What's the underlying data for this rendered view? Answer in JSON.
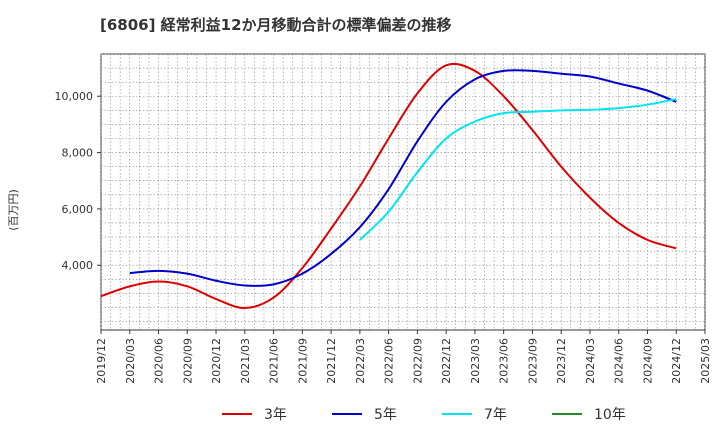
{
  "chart_data": {
    "type": "line",
    "title": "[6806]  経常利益12か月移動合計の標準偏差の推移",
    "ylabel": "(百万円)",
    "xlabel": "",
    "x_ticks": [
      "2019/12",
      "2020/03",
      "2020/06",
      "2020/09",
      "2020/12",
      "2021/03",
      "2021/06",
      "2021/09",
      "2021/12",
      "2022/03",
      "2022/06",
      "2022/09",
      "2022/12",
      "2023/03",
      "2023/06",
      "2023/09",
      "2023/12",
      "2024/03",
      "2024/06",
      "2024/09",
      "2024/12",
      "2025/03"
    ],
    "y_ticks": [
      "4,000",
      "6,000",
      "8,000",
      "10,000"
    ],
    "y_tick_values": [
      4000,
      6000,
      8000,
      10000
    ],
    "ylim": [
      1700,
      11500
    ],
    "grid": true,
    "legend_position": "bottom",
    "series": [
      {
        "name": "3年",
        "color": "#dd0000",
        "points": [
          [
            "2019/12",
            2900
          ],
          [
            "2020/03",
            3250
          ],
          [
            "2020/06",
            3420
          ],
          [
            "2020/09",
            3250
          ],
          [
            "2020/12",
            2800
          ],
          [
            "2021/03",
            2480
          ],
          [
            "2021/06",
            2850
          ],
          [
            "2021/09",
            3900
          ],
          [
            "2021/12",
            5300
          ],
          [
            "2022/03",
            6800
          ],
          [
            "2022/06",
            8500
          ],
          [
            "2022/09",
            10100
          ],
          [
            "2022/12",
            11100
          ],
          [
            "2023/03",
            10900
          ],
          [
            "2023/06",
            10000
          ],
          [
            "2023/09",
            8800
          ],
          [
            "2023/12",
            7500
          ],
          [
            "2024/03",
            6400
          ],
          [
            "2024/06",
            5500
          ],
          [
            "2024/09",
            4900
          ],
          [
            "2024/12",
            4600
          ]
        ]
      },
      {
        "name": "5年",
        "color": "#0000cc",
        "points": [
          [
            "2020/03",
            3720
          ],
          [
            "2020/06",
            3800
          ],
          [
            "2020/09",
            3700
          ],
          [
            "2020/12",
            3450
          ],
          [
            "2021/03",
            3280
          ],
          [
            "2021/06",
            3320
          ],
          [
            "2021/09",
            3700
          ],
          [
            "2021/12",
            4400
          ],
          [
            "2022/03",
            5350
          ],
          [
            "2022/06",
            6700
          ],
          [
            "2022/09",
            8400
          ],
          [
            "2022/12",
            9800
          ],
          [
            "2023/03",
            10600
          ],
          [
            "2023/06",
            10900
          ],
          [
            "2023/09",
            10900
          ],
          [
            "2023/12",
            10800
          ],
          [
            "2024/03",
            10700
          ],
          [
            "2024/06",
            10450
          ],
          [
            "2024/09",
            10200
          ],
          [
            "2024/12",
            9800
          ]
        ]
      },
      {
        "name": "7年",
        "color": "#00e5ee",
        "points": [
          [
            "2022/03",
            4900
          ],
          [
            "2022/06",
            5900
          ],
          [
            "2022/09",
            7300
          ],
          [
            "2022/12",
            8500
          ],
          [
            "2023/03",
            9100
          ],
          [
            "2023/06",
            9400
          ],
          [
            "2023/09",
            9450
          ],
          [
            "2023/12",
            9500
          ],
          [
            "2024/03",
            9520
          ],
          [
            "2024/06",
            9580
          ],
          [
            "2024/09",
            9700
          ],
          [
            "2024/12",
            9900
          ]
        ]
      },
      {
        "name": "10年",
        "color": "#228b22",
        "points": []
      }
    ]
  }
}
